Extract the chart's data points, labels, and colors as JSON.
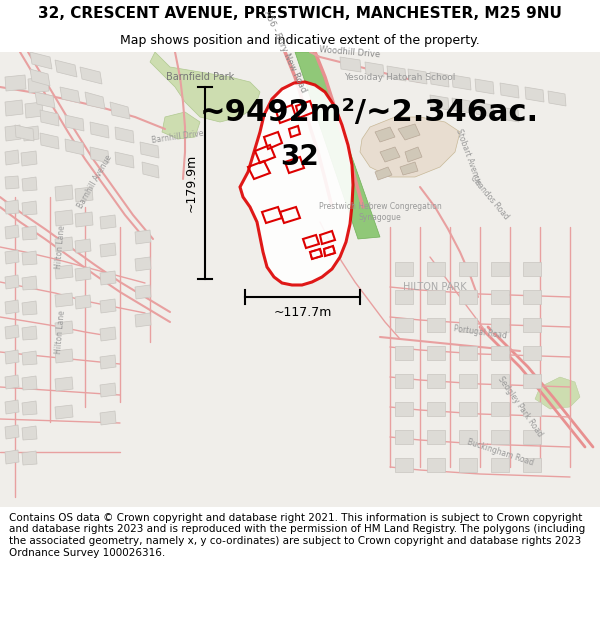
{
  "title": "32, CRESCENT AVENUE, PRESTWICH, MANCHESTER, M25 9NU",
  "subtitle": "Map shows position and indicative extent of the property.",
  "area_text": "~9492m²/~2.346ac.",
  "label_32": "32",
  "dim_vertical": "~179.9m",
  "dim_horizontal": "~117.7m",
  "footer": "Contains OS data © Crown copyright and database right 2021. This information is subject to Crown copyright and database rights 2023 and is reproduced with the permission of HM Land Registry. The polygons (including the associated geometry, namely x, y co-ordinates) are subject to Crown copyright and database rights 2023 Ordnance Survey 100026316.",
  "map_bg": "#f0eeea",
  "road_color": "#e8a0a0",
  "road_color2": "#e89090",
  "building_face": "#dddbd6",
  "building_edge": "#c8c5c0",
  "park_color": "#cdddb0",
  "park_edge": "#b0c890",
  "school_color": "#e8ddd0",
  "green_strip": "#90c878",
  "white_bg": "#ffffff",
  "red_color": "#dd0000",
  "black": "#000000",
  "gray_label": "#888888",
  "title_fontsize": 11,
  "subtitle_fontsize": 9,
  "area_fontsize": 22,
  "label32_fontsize": 20,
  "footer_fontsize": 7.5,
  "dim_fontsize": 9
}
